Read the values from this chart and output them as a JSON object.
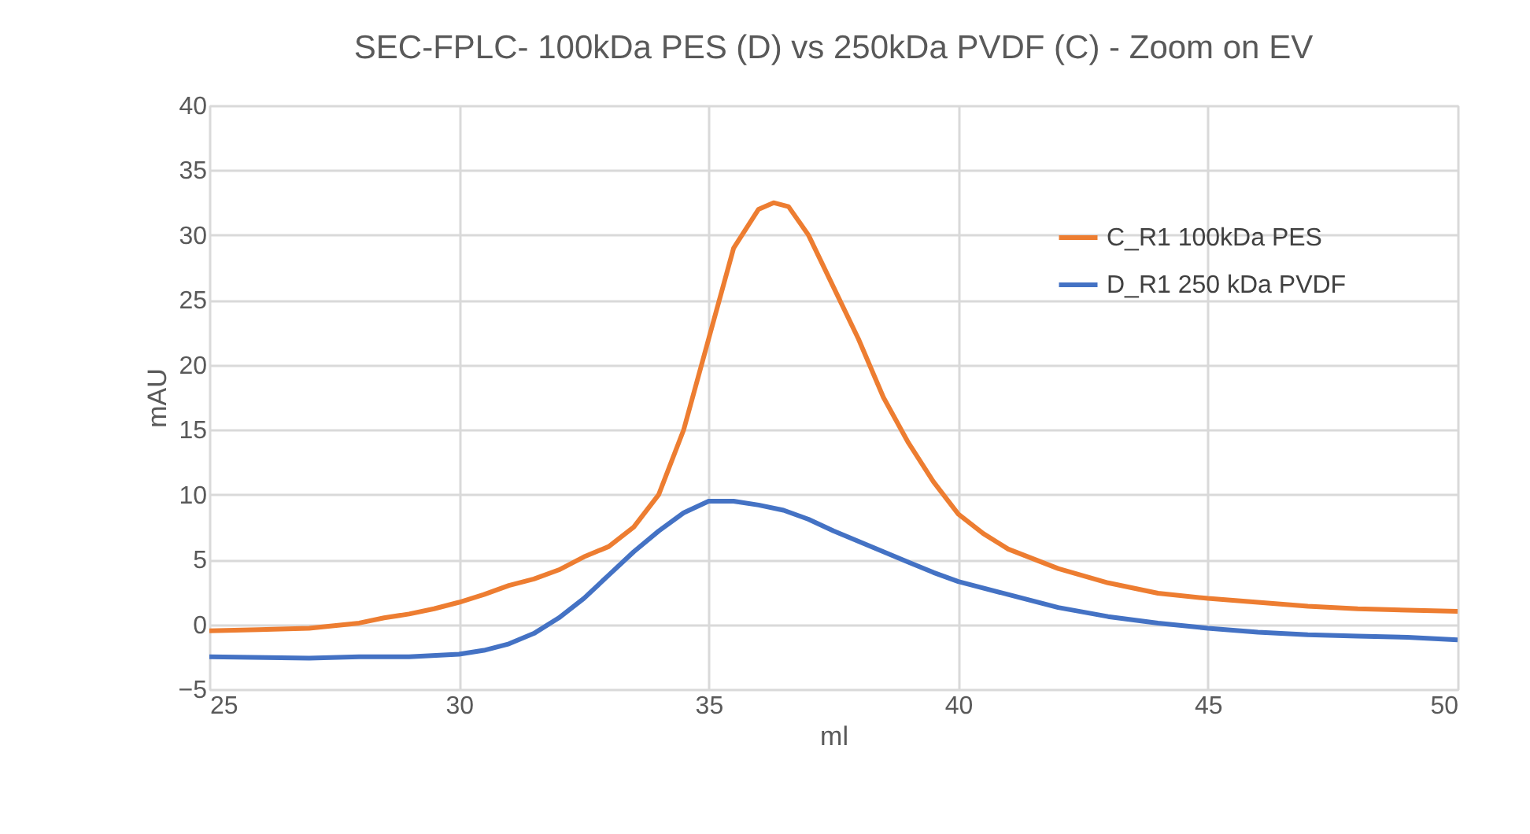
{
  "chart_data": {
    "type": "line",
    "title": "SEC-FPLC- 100kDa PES (D) vs 250kDa PVDF (C) - Zoom on EV",
    "xlabel": "ml",
    "ylabel": "mAU",
    "xlim": [
      25,
      50
    ],
    "xticks": [
      25,
      30,
      35,
      40,
      45,
      50
    ],
    "ylim": [
      -5,
      40
    ],
    "yticks": [
      -5,
      0,
      5,
      10,
      15,
      20,
      25,
      30,
      35,
      40
    ],
    "grid": true,
    "legend": "top right",
    "marker": "none",
    "line_style": "solid",
    "series": [
      {
        "name": "C_R1 100kDa PES",
        "color": "#ed7d31",
        "x": [
          25,
          26,
          27,
          27.5,
          28,
          28.5,
          29,
          29.5,
          30,
          30.5,
          31,
          31.5,
          32,
          32.5,
          33,
          33.5,
          34,
          34.5,
          35,
          35.5,
          36,
          36.3,
          36.6,
          37,
          37.5,
          38,
          38.5,
          39,
          39.5,
          40,
          40.5,
          41,
          42,
          43,
          44,
          45,
          46,
          47,
          48,
          49,
          50
        ],
        "values": [
          -0.5,
          -0.4,
          -0.3,
          -0.1,
          0.1,
          0.5,
          0.8,
          1.2,
          1.7,
          2.3,
          3.0,
          3.5,
          4.2,
          5.2,
          6.0,
          7.5,
          10,
          15,
          22,
          29,
          32,
          32.5,
          32.2,
          30,
          26,
          22,
          17.5,
          14,
          11,
          8.5,
          7,
          5.8,
          4.3,
          3.2,
          2.4,
          2.0,
          1.7,
          1.4,
          1.2,
          1.1,
          1.0
        ]
      },
      {
        "name": "D_R1 250 kDa PVDF",
        "color": "#4472c4",
        "x": [
          25,
          27,
          28,
          29,
          30,
          30.5,
          31,
          31.5,
          32,
          32.5,
          33,
          33.5,
          34,
          34.5,
          35,
          35.5,
          36,
          36.5,
          37,
          37.5,
          38,
          38.5,
          39,
          39.5,
          40,
          41,
          42,
          43,
          44,
          45,
          46,
          47,
          48,
          49,
          50
        ],
        "values": [
          -2.5,
          -2.6,
          -2.5,
          -2.5,
          -2.3,
          -2.0,
          -1.5,
          -0.7,
          0.5,
          2,
          3.8,
          5.6,
          7.2,
          8.6,
          9.5,
          9.5,
          9.2,
          8.8,
          8.1,
          7.2,
          6.4,
          5.6,
          4.8,
          4.0,
          3.3,
          2.3,
          1.3,
          0.6,
          0.1,
          -0.3,
          -0.6,
          -0.8,
          -0.9,
          -1.0,
          -1.2
        ]
      }
    ]
  }
}
